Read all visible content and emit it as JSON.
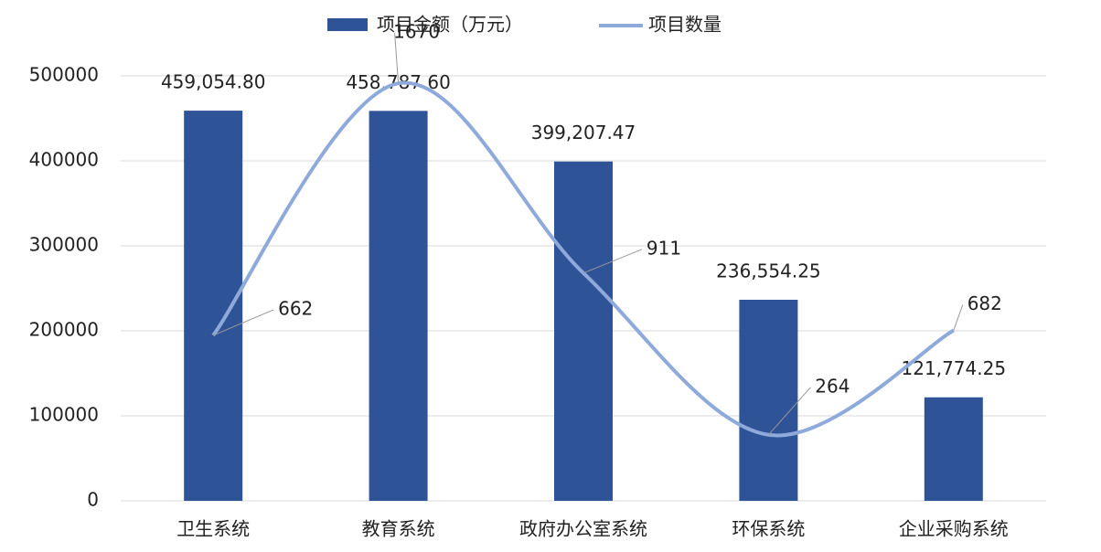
{
  "chart_data": {
    "type": "bar-line",
    "categories": [
      "卫生系统",
      "教育系统",
      "政府办公室系统",
      "环保系统",
      "企业采购系统"
    ],
    "series": [
      {
        "name": "项目金额（万元）",
        "color": "#2e5396",
        "type": "bar",
        "values": [
          459054.8,
          458787.6,
          399207.47,
          236554.25,
          121774.25
        ],
        "value_labels": [
          "459,054.80",
          "458,787.60",
          "399,207.47",
          "236,554.25",
          "121,774.25"
        ]
      },
      {
        "name": "项目数量",
        "color": "#8eaadb",
        "type": "line",
        "axis": "y2",
        "values": [
          662,
          1670,
          911,
          264,
          682
        ]
      }
    ],
    "ylim": [
      0,
      500000
    ],
    "yticks": [
      0,
      100000,
      200000,
      300000,
      400000,
      500000
    ],
    "y2lim": [
      0,
      1700
    ],
    "grid": true,
    "legend": "top"
  }
}
